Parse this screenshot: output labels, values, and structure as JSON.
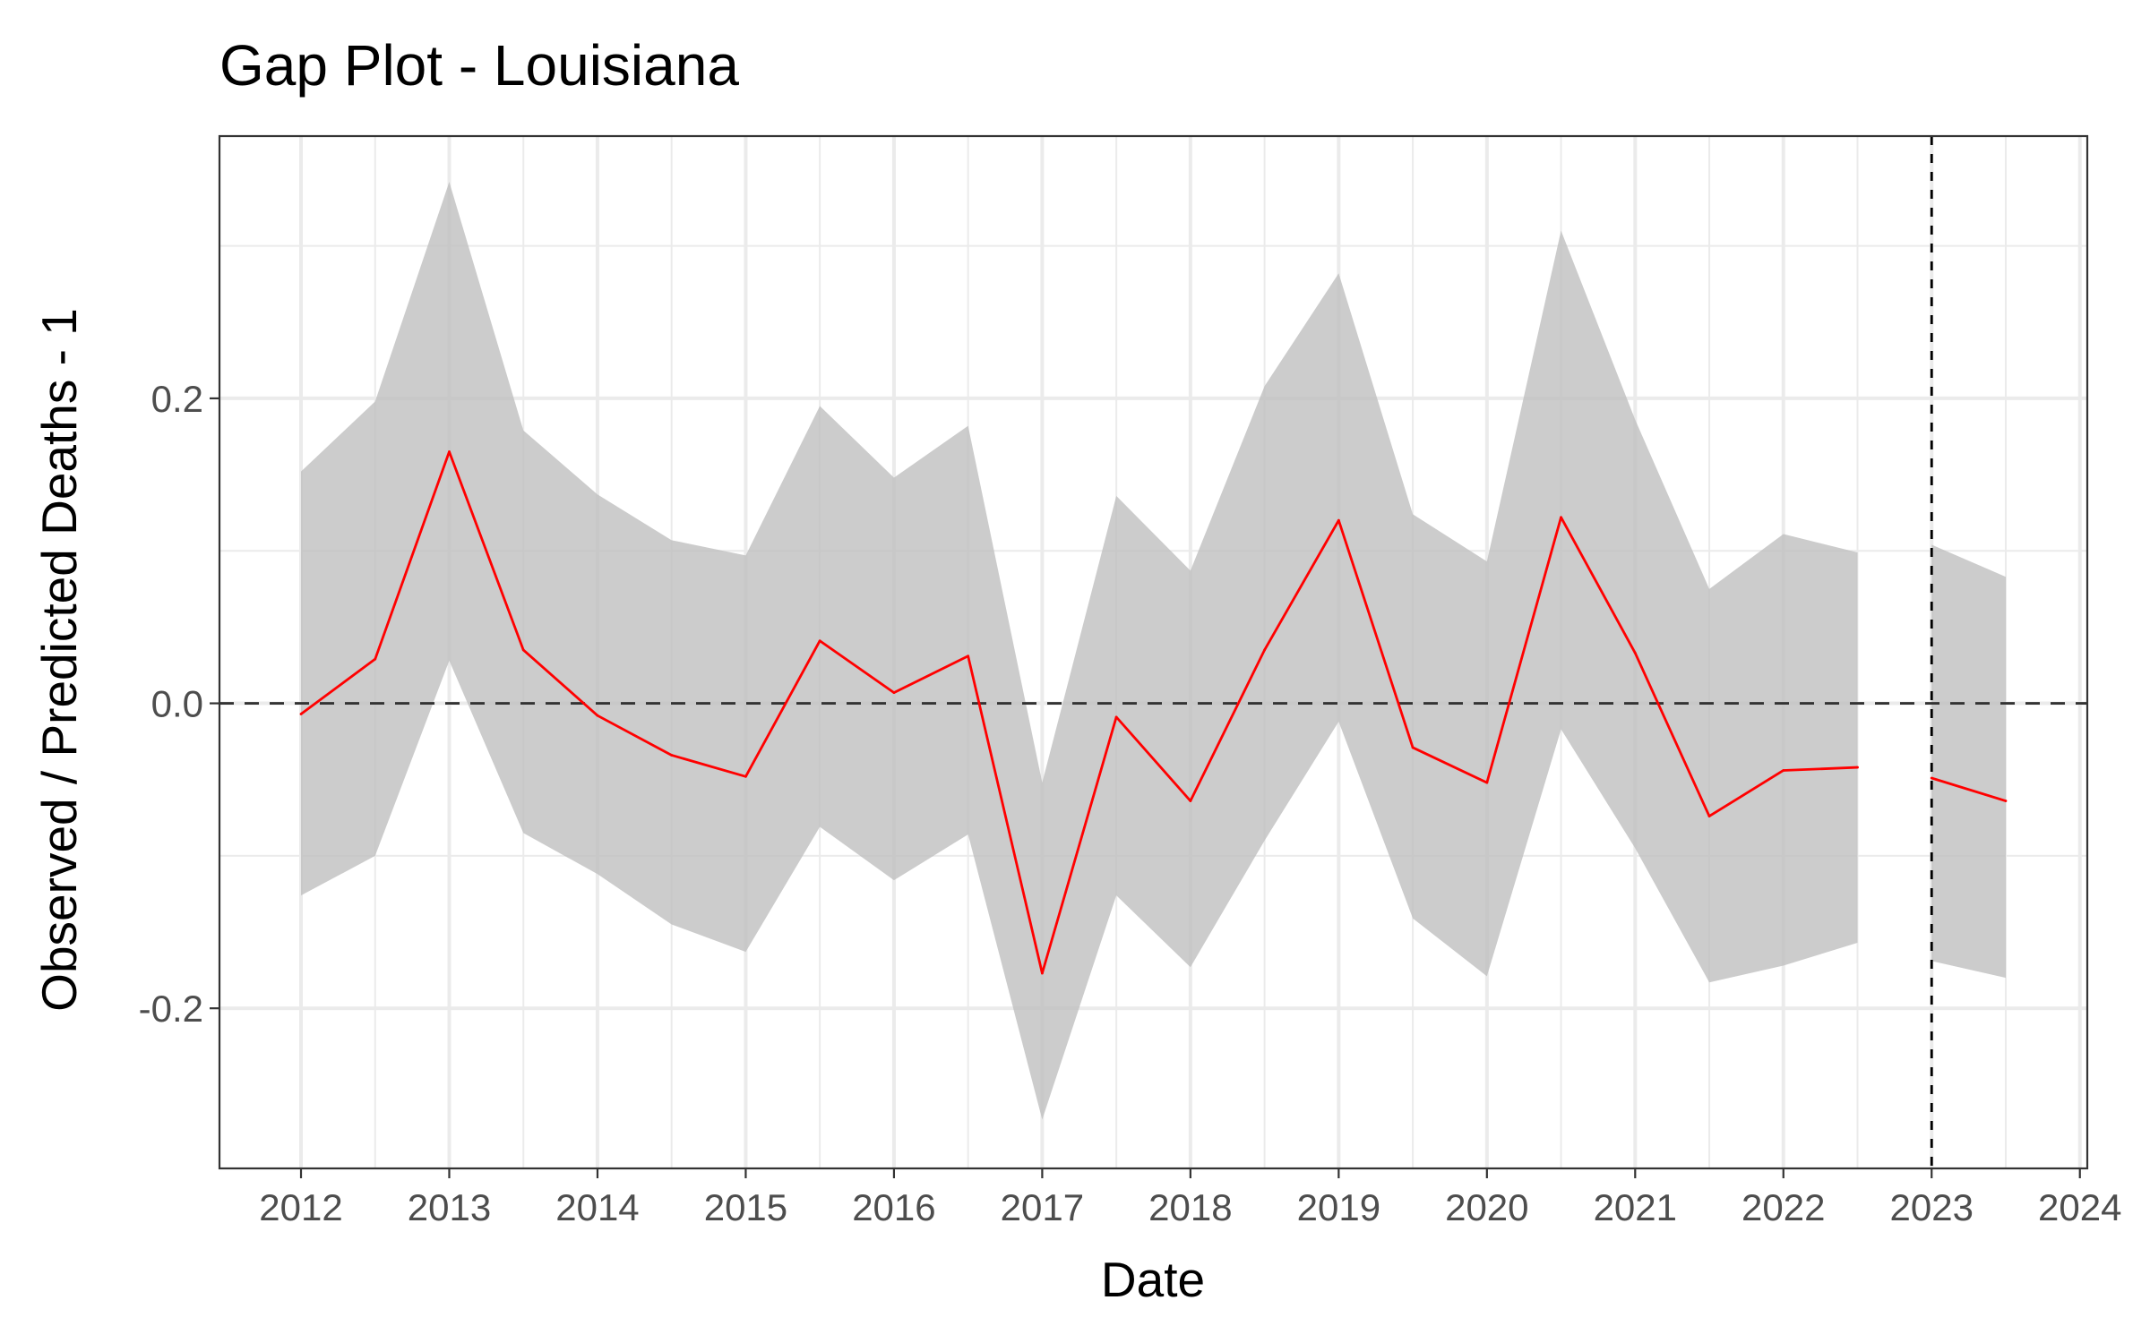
{
  "chart_data": {
    "type": "line",
    "title": "Gap Plot - Louisiana",
    "xlabel": "Date",
    "ylabel": "Observed / Predicted Deaths - 1",
    "xlim": [
      2011.45,
      2024.05
    ],
    "ylim": [
      -0.305,
      0.372
    ],
    "x_ticks": [
      2012,
      2013,
      2014,
      2015,
      2016,
      2017,
      2018,
      2019,
      2020,
      2021,
      2022,
      2023,
      2024
    ],
    "x_tick_labels": [
      "2012",
      "2013",
      "2014",
      "2015",
      "2016",
      "2017",
      "2018",
      "2019",
      "2020",
      "2021",
      "2022",
      "2023",
      "2024"
    ],
    "y_ticks": [
      -0.2,
      0.0,
      0.2
    ],
    "y_tick_labels": [
      "-0.2",
      "0.0",
      "0.2"
    ],
    "y_minor": [
      -0.1,
      0.1,
      0.3
    ],
    "grid": true,
    "reference_lines": {
      "horizontal_y": 0.0,
      "vertical_x": 2023
    },
    "series": [
      {
        "name": "gap",
        "color": "#ff0000",
        "band_color": "#bebebe",
        "segments": [
          {
            "x": [
              2012.0,
              2012.5,
              2013.0,
              2013.5,
              2014.0,
              2014.5,
              2015.0,
              2015.5,
              2016.0,
              2016.5,
              2017.0,
              2017.5,
              2018.0,
              2018.5,
              2019.0,
              2019.5,
              2020.0,
              2020.5,
              2021.0,
              2021.5,
              2022.0,
              2022.5
            ],
            "y": [
              -0.007,
              0.029,
              0.165,
              0.035,
              -0.008,
              -0.034,
              -0.048,
              0.041,
              0.007,
              0.031,
              -0.177,
              -0.009,
              -0.064,
              0.035,
              0.12,
              -0.029,
              -0.052,
              0.122,
              0.033,
              -0.074,
              -0.044,
              -0.042
            ],
            "lower": [
              -0.126,
              -0.1,
              0.028,
              -0.085,
              -0.112,
              -0.145,
              -0.163,
              -0.081,
              -0.116,
              -0.086,
              -0.273,
              -0.126,
              -0.173,
              -0.09,
              -0.012,
              -0.141,
              -0.179,
              -0.017,
              -0.095,
              -0.183,
              -0.172,
              -0.157
            ],
            "upper": [
              0.152,
              0.198,
              0.342,
              0.179,
              0.137,
              0.107,
              0.097,
              0.195,
              0.148,
              0.182,
              -0.052,
              0.136,
              0.087,
              0.208,
              0.282,
              0.124,
              0.093,
              0.31,
              0.186,
              0.075,
              0.111,
              0.099
            ]
          },
          {
            "x": [
              2023.0,
              2023.5
            ],
            "y": [
              -0.049,
              -0.064
            ],
            "lower": [
              -0.169,
              -0.18
            ],
            "upper": [
              0.104,
              0.083
            ]
          }
        ]
      }
    ]
  }
}
